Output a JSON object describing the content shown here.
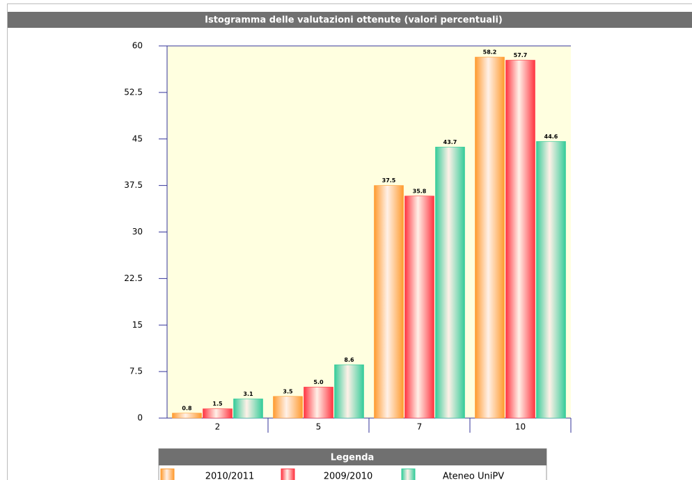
{
  "chart_data": {
    "type": "bar",
    "title": "Istogramma delle valutazioni ottenute (valori percentuali)",
    "categories": [
      "2",
      "5",
      "7",
      "10"
    ],
    "series": [
      {
        "name": "2010/2011",
        "color": "#ff9a2e",
        "values": [
          0.8,
          3.5,
          37.5,
          58.2
        ],
        "value_labels": [
          "0.8",
          "3.5",
          "37.5",
          "58.2"
        ]
      },
      {
        "name": "2009/2010",
        "color": "#ff3340",
        "values": [
          1.5,
          5.0,
          35.8,
          57.7
        ],
        "value_labels": [
          "1.5",
          "5.0",
          "35.8",
          "57.7"
        ]
      },
      {
        "name": "Ateneo UniPV",
        "color": "#33cc99",
        "values": [
          3.1,
          8.6,
          43.7,
          44.6
        ],
        "value_labels": [
          "3.1",
          "8.6",
          "43.7",
          "44.6"
        ]
      }
    ],
    "ylim": [
      0,
      60
    ],
    "yticks": [
      0,
      7.5,
      15,
      22.5,
      30,
      37.5,
      45,
      52.5,
      60
    ],
    "legend_title": "Legenda"
  }
}
